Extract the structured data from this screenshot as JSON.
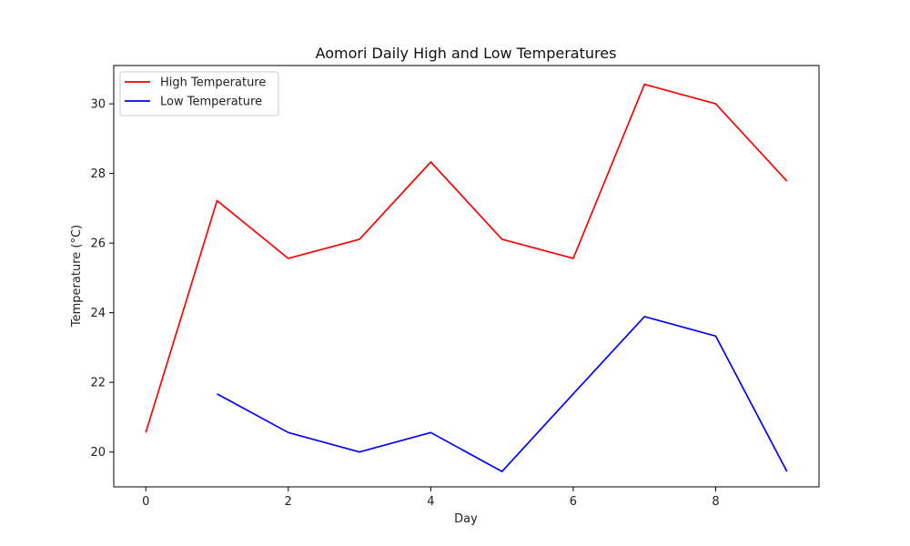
{
  "chart_data": {
    "type": "line",
    "title": "Aomori Daily High and Low Temperatures",
    "xlabel": "Day",
    "ylabel": "Temperature (°C)",
    "xlim": [
      -0.45,
      9.45
    ],
    "ylim": [
      19.0,
      31.1
    ],
    "xticks": [
      0,
      2,
      4,
      6,
      8
    ],
    "yticks": [
      20,
      22,
      24,
      26,
      28,
      30
    ],
    "grid": false,
    "legend_position": "top-left",
    "series": [
      {
        "name": "High Temperature",
        "color": "#ff0000",
        "x": [
          0,
          1,
          2,
          3,
          4,
          5,
          6,
          7,
          8,
          9
        ],
        "values": [
          20.56,
          27.22,
          25.56,
          26.11,
          28.33,
          26.11,
          25.56,
          30.56,
          30.0,
          27.78
        ]
      },
      {
        "name": "Low Temperature",
        "color": "#0000ff",
        "x": [
          1,
          2,
          3,
          4,
          5,
          6,
          7,
          8,
          9
        ],
        "values": [
          21.67,
          20.56,
          20.0,
          20.56,
          19.44,
          21.67,
          23.89,
          23.33,
          19.44
        ]
      }
    ]
  }
}
